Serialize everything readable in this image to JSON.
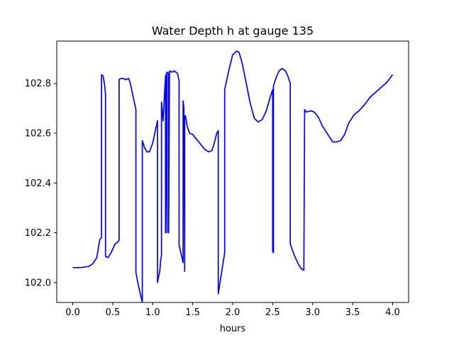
{
  "chart_data": {
    "type": "line",
    "title": "Water Depth h at gauge 135",
    "xlabel": "hours",
    "ylabel": "",
    "xlim": [
      -0.2,
      4.2
    ],
    "ylim": [
      101.92,
      102.97
    ],
    "xticks": [
      0.0,
      0.5,
      1.0,
      1.5,
      2.0,
      2.5,
      3.0,
      3.5,
      4.0
    ],
    "xtick_labels": [
      "0.0",
      "0.5",
      "1.0",
      "1.5",
      "2.0",
      "2.5",
      "3.0",
      "3.5",
      "4.0"
    ],
    "yticks": [
      102.0,
      102.2,
      102.4,
      102.6,
      102.8
    ],
    "ytick_labels": [
      "102.0",
      "102.2",
      "102.4",
      "102.6",
      "102.8"
    ],
    "grid": false,
    "series": [
      {
        "color": "#0000ff",
        "x": [
          0.0,
          0.1,
          0.2,
          0.25,
          0.3,
          0.34,
          0.36,
          0.36,
          0.38,
          0.4,
          0.41,
          0.41,
          0.44,
          0.48,
          0.53,
          0.57,
          0.58,
          0.58,
          0.6,
          0.63,
          0.66,
          0.7,
          0.72,
          0.79,
          0.79,
          0.82,
          0.87,
          0.87,
          0.9,
          0.93,
          0.96,
          1.0,
          1.06,
          1.06,
          1.09,
          1.1,
          1.11,
          1.11,
          1.13,
          1.16,
          1.16,
          1.17,
          1.18,
          1.18,
          1.2,
          1.2,
          1.21,
          1.21,
          1.24,
          1.27,
          1.31,
          1.33,
          1.33,
          1.38,
          1.38,
          1.39,
          1.4,
          1.4,
          1.41,
          1.43,
          1.46,
          1.5,
          1.55,
          1.6,
          1.65,
          1.7,
          1.74,
          1.77,
          1.8,
          1.82,
          1.82,
          1.9,
          1.9,
          1.95,
          2.0,
          2.05,
          2.08,
          2.12,
          2.17,
          2.22,
          2.27,
          2.32,
          2.37,
          2.42,
          2.47,
          2.5,
          2.5,
          2.51,
          2.51,
          2.54,
          2.58,
          2.62,
          2.66,
          2.69,
          2.72,
          2.72,
          2.77,
          2.82,
          2.86,
          2.89,
          2.89,
          2.9,
          2.92,
          2.98,
          3.02,
          3.07,
          3.12,
          3.18,
          3.25,
          3.3,
          3.35,
          3.4,
          3.45,
          3.52,
          3.58,
          3.65,
          3.72,
          3.79,
          3.86,
          3.93,
          4.0
        ],
        "y": [
          102.06,
          102.06,
          102.065,
          102.075,
          102.1,
          102.175,
          102.18,
          102.835,
          102.83,
          102.79,
          102.755,
          102.105,
          102.1,
          102.12,
          102.155,
          102.165,
          102.17,
          102.815,
          102.82,
          102.82,
          102.815,
          102.82,
          102.8,
          102.695,
          102.04,
          101.99,
          101.92,
          102.57,
          102.54,
          102.525,
          102.525,
          102.56,
          102.65,
          102.0,
          102.05,
          102.09,
          102.11,
          102.725,
          102.65,
          102.83,
          102.2,
          102.84,
          102.2,
          102.845,
          102.84,
          102.2,
          102.85,
          102.85,
          102.845,
          102.85,
          102.84,
          102.81,
          102.15,
          102.08,
          102.73,
          102.7,
          102.045,
          102.67,
          102.67,
          102.63,
          102.6,
          102.595,
          102.575,
          102.555,
          102.535,
          102.525,
          102.53,
          102.56,
          102.6,
          102.61,
          101.955,
          102.12,
          102.775,
          102.85,
          102.915,
          102.93,
          102.925,
          102.88,
          102.8,
          102.72,
          102.66,
          102.645,
          102.655,
          102.69,
          102.745,
          102.775,
          102.125,
          102.12,
          102.79,
          102.82,
          102.85,
          102.86,
          102.85,
          102.83,
          102.8,
          102.155,
          102.11,
          102.075,
          102.055,
          102.05,
          102.05,
          102.695,
          102.685,
          102.69,
          102.685,
          102.665,
          102.63,
          102.6,
          102.565,
          102.565,
          102.57,
          102.595,
          102.64,
          102.675,
          102.69,
          102.715,
          102.745,
          102.765,
          102.785,
          102.805,
          102.835
        ]
      }
    ]
  }
}
